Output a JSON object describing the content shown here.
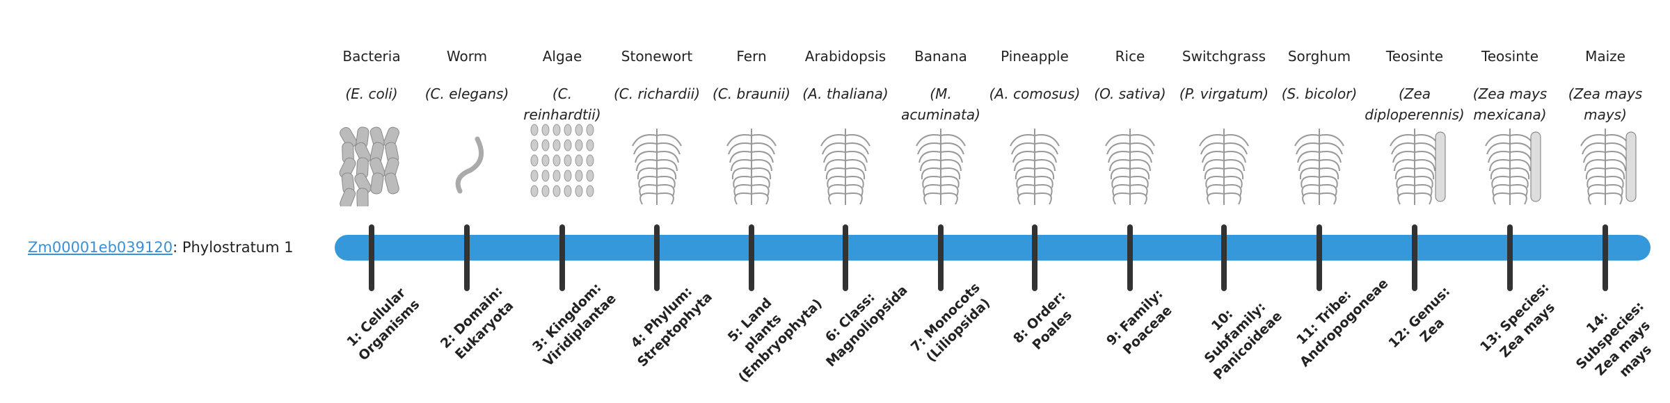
{
  "gene": {
    "id": "Zm00001eb039120",
    "suffix": ": Phylostratum 1"
  },
  "colors": {
    "bar": "#3498db",
    "tick": "#333333",
    "link": "#3a8fd6"
  },
  "strata": [
    {
      "common": "Bacteria",
      "sci": "E. coli",
      "label": "1: Cellular Organisms",
      "icon": "bacteria-illustration"
    },
    {
      "common": "Worm",
      "sci": "C. elegans",
      "label": "2: Domain: Eukaryota",
      "icon": "worm-illustration"
    },
    {
      "common": "Algae",
      "sci": "C. reinhardtii",
      "label": "3: Kingdom: Viridiplantae",
      "icon": "algae-illustration"
    },
    {
      "common": "Stonewort",
      "sci": "C. richardii",
      "label": "4: Phylum: Streptophyta",
      "icon": "stonewort-illustration"
    },
    {
      "common": "Fern",
      "sci": "C. braunii",
      "label": "5: Land plants (Embryophyta)",
      "icon": "fern-illustration"
    },
    {
      "common": "Arabidopsis",
      "sci": "A. thaliana",
      "label": "6: Class: Magnoliopsida",
      "icon": "arabidopsis-illustration"
    },
    {
      "common": "Banana",
      "sci": "M. acuminata",
      "label": "7: Monocots (Liliopsida)",
      "icon": "banana-illustration"
    },
    {
      "common": "Pineapple",
      "sci": "A. comosus",
      "label": "8: Order: Poales",
      "icon": "pineapple-illustration"
    },
    {
      "common": "Rice",
      "sci": "O. sativa",
      "label": "9: Family: Poaceae",
      "icon": "rice-illustration"
    },
    {
      "common": "Switchgrass",
      "sci": "P. virgatum",
      "label": "10: Subfamily: Panicoideae",
      "icon": "switchgrass-illustration"
    },
    {
      "common": "Sorghum",
      "sci": "S. bicolor",
      "label": "11: Tribe: Andropogoneae",
      "icon": "sorghum-illustration"
    },
    {
      "common": "Teosinte",
      "sci": "Zea diploperennis",
      "label": "12: Genus: Zea",
      "icon": "teosinte-illustration"
    },
    {
      "common": "Teosinte",
      "sci": "Zea mays mexicana",
      "label": "13: Species: Zea mays",
      "icon": "teosinte-illustration"
    },
    {
      "common": "Maize",
      "sci": "Zea mays mays",
      "label": "14: Subspecies: Zea mays mays",
      "icon": "maize-illustration"
    }
  ]
}
